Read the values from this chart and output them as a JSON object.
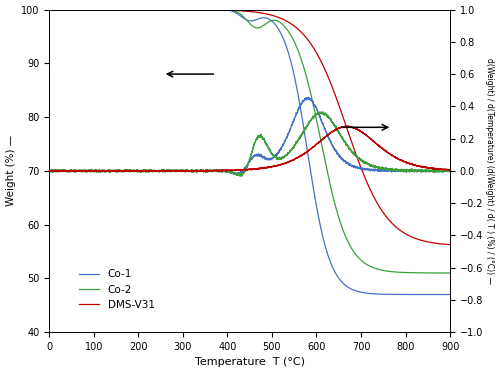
{
  "xlabel": "Temperature  T (°C)",
  "ylabel_left": "Weight (%) —",
  "ylabel_right": "d(Weight) / d(Temperature) (d(Weight) / d( T ) (%) / (°C)) —",
  "xlim": [
    0,
    900
  ],
  "ylim_left": [
    40,
    100
  ],
  "ylim_right": [
    -1.0,
    1.0
  ],
  "colors": {
    "Co1": "#4472c4",
    "Co2": "#3d9e3d",
    "DMS": "#c00000"
  },
  "legend": [
    "Co-1",
    "Co-2",
    "DMS-V31"
  ]
}
